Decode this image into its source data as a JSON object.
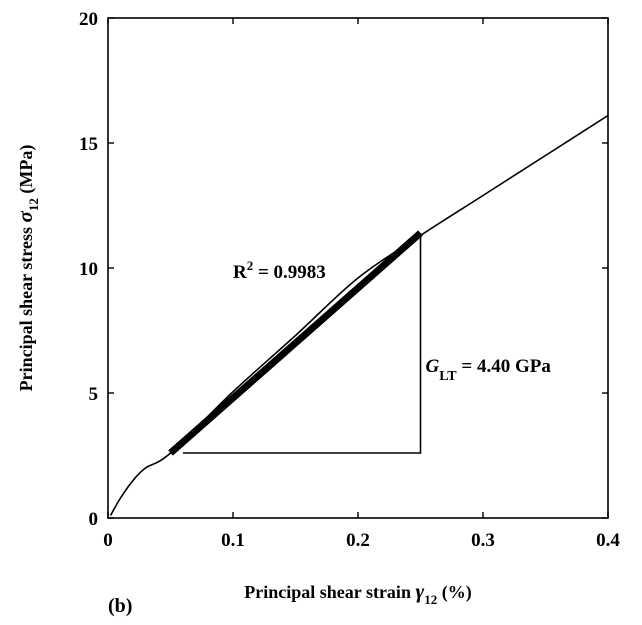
{
  "chart_data": {
    "type": "line",
    "panel_label": "(b)",
    "xlabel": {
      "prefix": "Principal shear strain ",
      "symbol": "γ",
      "subscript": "12",
      "suffix": " (%)"
    },
    "ylabel": {
      "prefix": "Principal shear stress ",
      "symbol": "σ",
      "subscript": "12",
      "suffix": " (MPa)"
    },
    "xlim": [
      0,
      0.4
    ],
    "ylim": [
      0,
      20
    ],
    "xticks": [
      "0",
      "0.1",
      "0.2",
      "0.3",
      "0.4"
    ],
    "yticks": [
      "0",
      "5",
      "10",
      "15",
      "20"
    ],
    "grid": false,
    "series": [
      {
        "x": [
          0.002,
          0.01,
          0.02,
          0.03,
          0.05,
          0.1,
          0.15,
          0.2,
          0.25,
          0.3,
          0.35,
          0.4
        ],
        "y": [
          0.1,
          0.8,
          1.5,
          2.0,
          2.6,
          5.05,
          7.3,
          9.6,
          11.3,
          12.9,
          14.5,
          16.1
        ]
      }
    ],
    "fit_line": {
      "x": [
        0.05,
        0.25
      ],
      "y": [
        2.6,
        11.4
      ]
    },
    "slope_triangle": {
      "x0": 0.06,
      "x1": 0.25,
      "y0": 2.6,
      "y1": 11.4
    },
    "annotations": {
      "r2": {
        "base": "R",
        "sup": "2",
        "text": " = 0.9983",
        "x": 0.1,
        "y": 9.6
      },
      "modulus": {
        "symbol": "G",
        "subscript": "LT",
        "text": " = 4.40 GPa",
        "x": 0.254,
        "y": 5.85
      }
    }
  }
}
